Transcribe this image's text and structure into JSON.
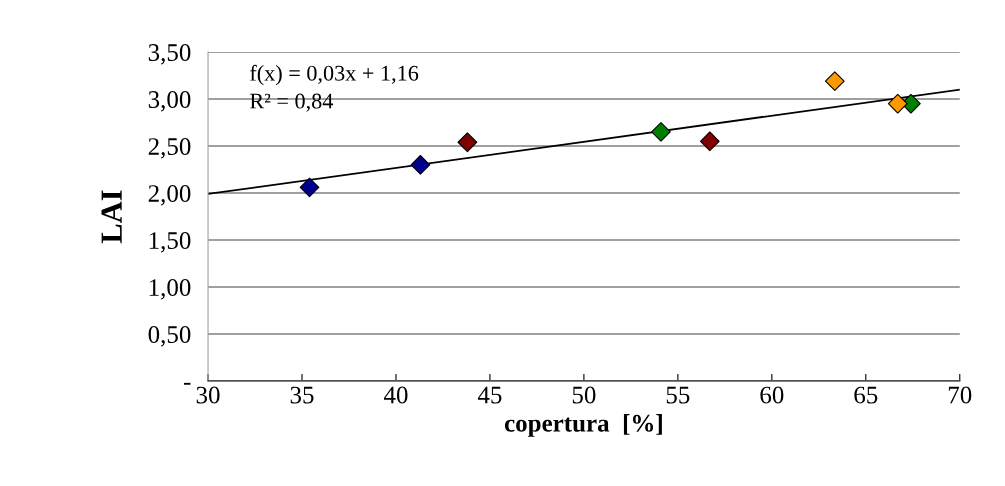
{
  "chart_data": {
    "type": "scatter",
    "xlabel": "copertura  [%]",
    "ylabel": "LAI",
    "marker": "diamond",
    "grid": "y",
    "xlim": [
      30,
      70
    ],
    "xticks": [
      30,
      35,
      40,
      45,
      50,
      55,
      60,
      65,
      70
    ],
    "ylim": [
      0,
      3.5
    ],
    "yticks": [
      {
        "value": 0,
        "label": "-"
      },
      {
        "value": 0.5,
        "label": "0,50"
      },
      {
        "value": 1,
        "label": "1,00"
      },
      {
        "value": 1.5,
        "label": "1,50"
      },
      {
        "value": 2,
        "label": "2,00"
      },
      {
        "value": 2.5,
        "label": "2,50"
      },
      {
        "value": 3,
        "label": "3,00"
      },
      {
        "value": 3.5,
        "label": "3,50"
      }
    ],
    "annotations": [
      "f(x) = 0,03x + 1,16",
      "R² = 0,84"
    ],
    "series": [
      {
        "color": "#00008b",
        "x": [
          35.4,
          41.3
        ],
        "values": [
          2.06,
          2.3
        ]
      },
      {
        "color": "#800000",
        "x": [
          43.8,
          56.7
        ],
        "values": [
          2.54,
          2.55
        ]
      },
      {
        "color": "#008000",
        "x": [
          54.1,
          67.4
        ],
        "values": [
          2.65,
          2.95
        ]
      },
      {
        "color": "#ff9900",
        "x": [
          63.35,
          66.7
        ],
        "values": [
          3.19,
          2.95
        ]
      },
      {
        "type": "line",
        "marker": "none",
        "color": "#000000",
        "x": [
          30,
          70
        ],
        "values": [
          1.99,
          3.1
        ]
      }
    ]
  }
}
